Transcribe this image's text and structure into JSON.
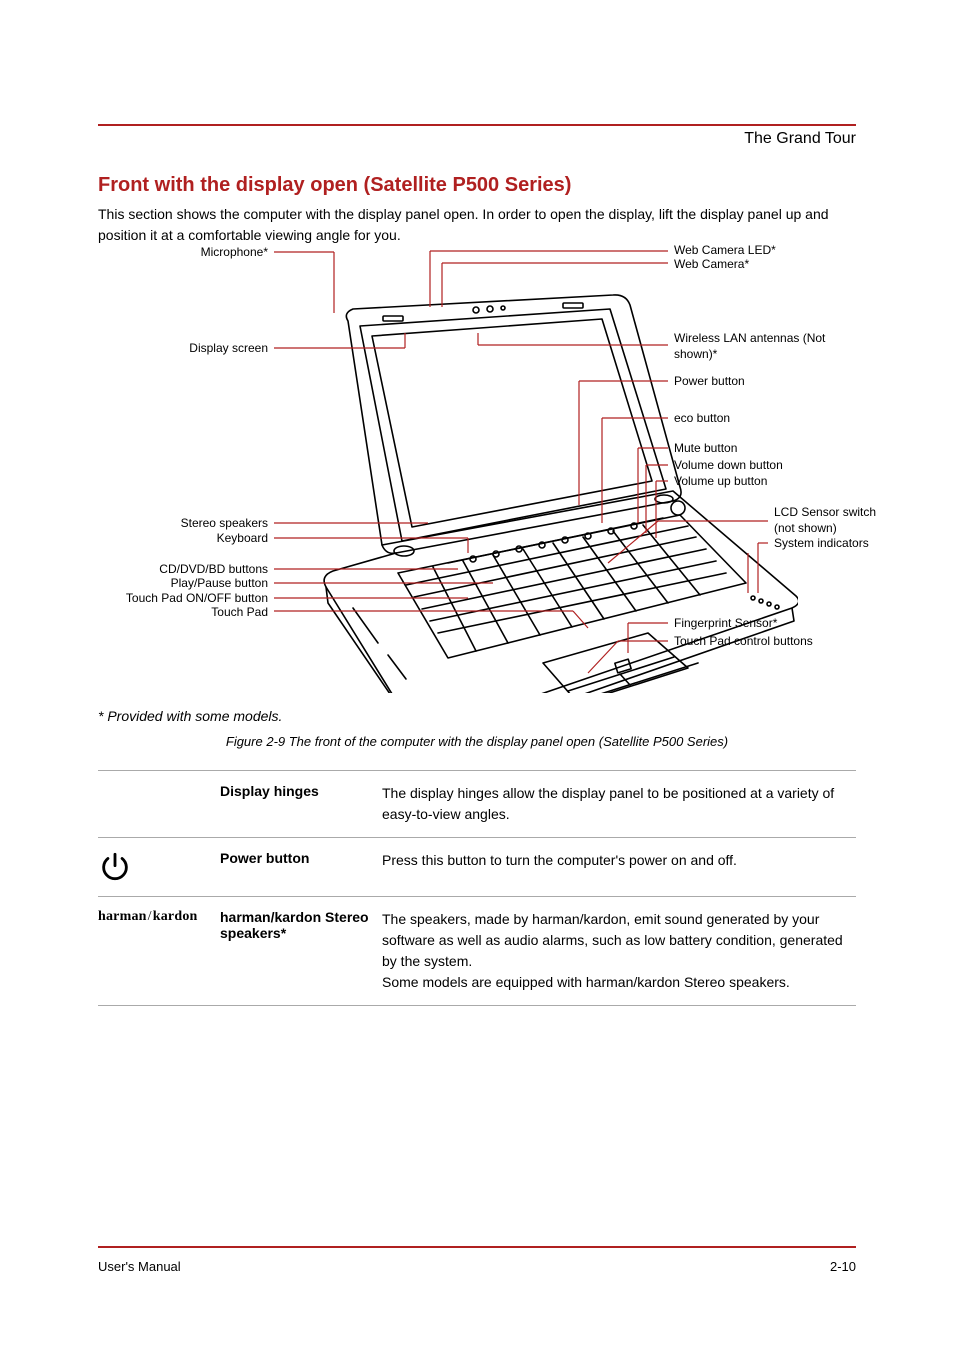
{
  "header": {
    "title": "The Grand Tour"
  },
  "section": {
    "title": "Front with the display open (Satellite P500 Series)",
    "intro": "This section shows the computer with the display panel open. In order to open the display, lift the display panel up and position it at a comfortable viewing angle for you.",
    "caption": "Figure 2-9 The front of the computer with the display panel open (Satellite P500 Series)",
    "note": "* Provided with some models."
  },
  "labels": {
    "left": [
      "Display screen",
      "Microphone*",
      "Stereo speakers",
      "Keyboard",
      "CD/DVD/BD buttons",
      "Play/Pause button",
      "Touch Pad ON/OFF button",
      "Touch Pad"
    ],
    "right": [
      "Web Camera LED*",
      "Web Camera*",
      "Wireless LAN antennas (Not shown)*",
      "Power button",
      "eco button",
      "Mute button",
      "Volume down button",
      "Volume up button",
      "LCD Sensor switch (not shown)",
      "System indicators",
      "Fingerprint Sensor*",
      "Touch Pad control buttons"
    ]
  },
  "descriptions": [
    {
      "icon": "display",
      "term": "Display hinges",
      "body": "The display hinges allow the display panel to be positioned at a variety of easy-to-view angles."
    },
    {
      "icon": "power",
      "term": "Power button",
      "body": "Press this button to turn the computer's power on and off."
    },
    {
      "icon": "harmankardon",
      "term": "harman/kardon Stereo speakers*",
      "body": "The speakers, made by harman/kardon, emit sound generated by your software as well as audio alarms, such as low battery condition, generated by the system.\nSome models are equipped with harman/kardon Stereo speakers."
    }
  ],
  "footer": {
    "left": "User's Manual",
    "right": "2-10"
  },
  "colors": {
    "rule": "#b02020",
    "text": "#000000",
    "divider": "#aaaaaa"
  }
}
